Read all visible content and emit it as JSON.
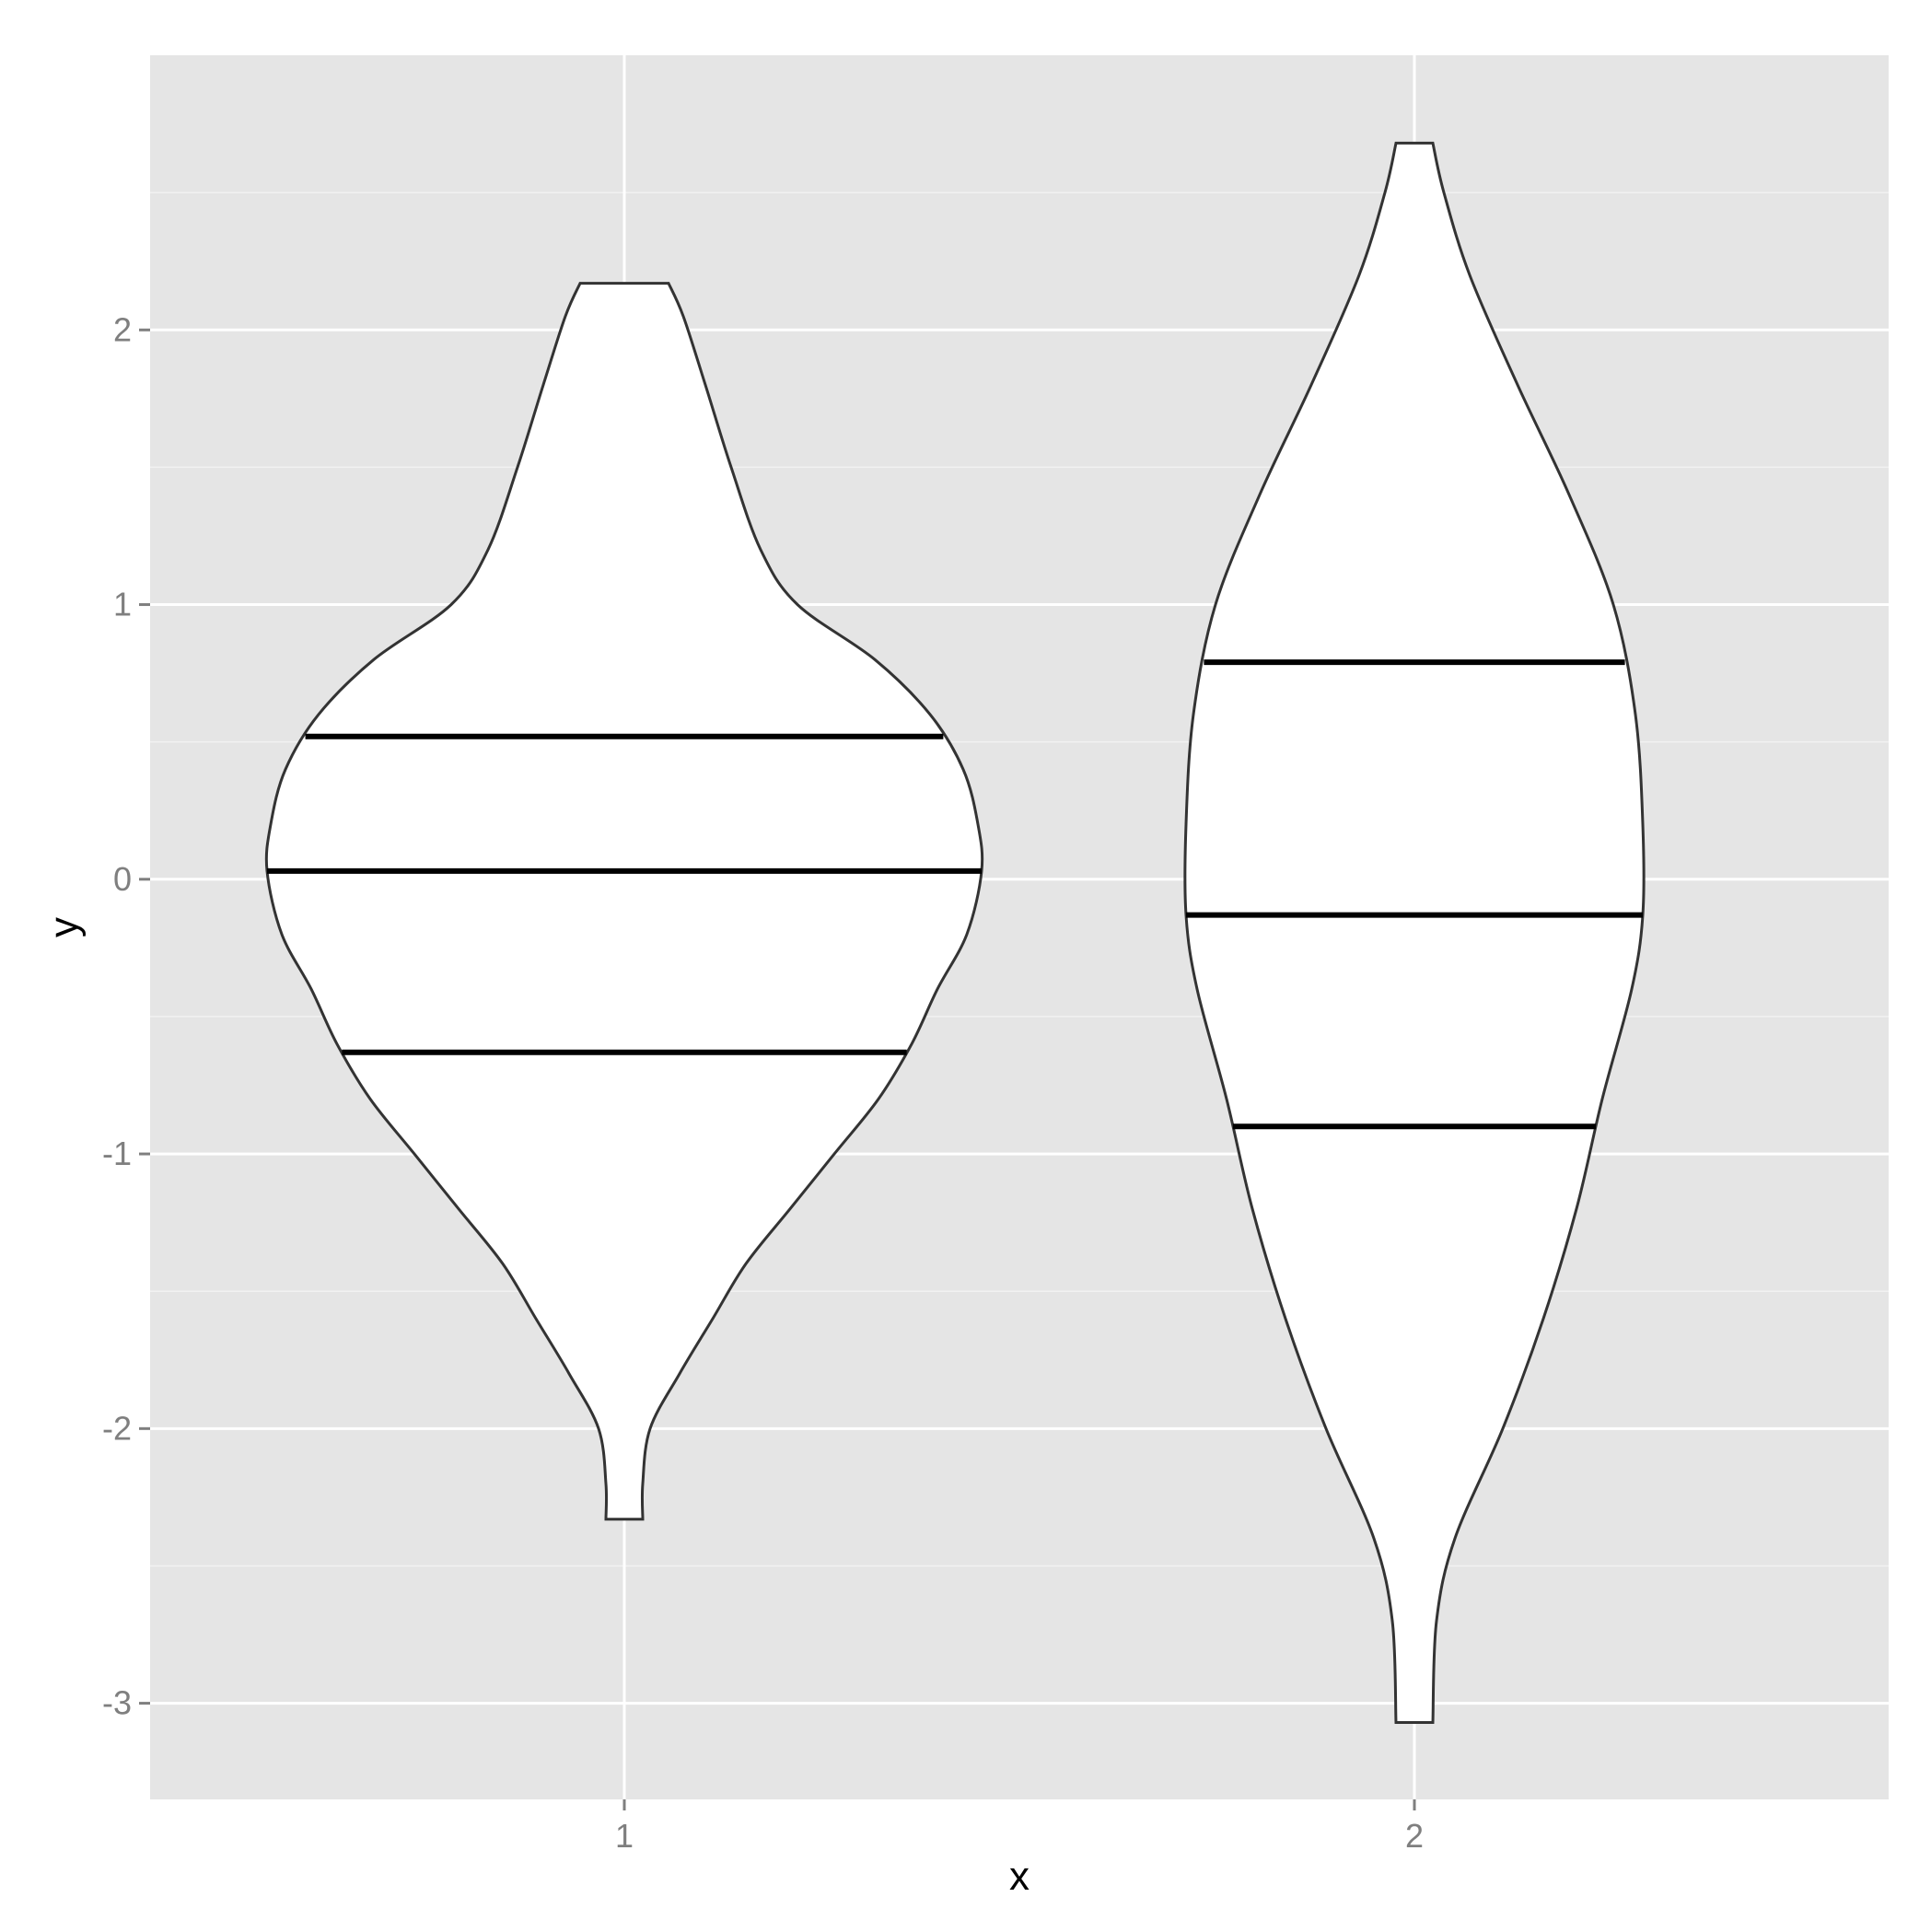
{
  "chart_data": {
    "type": "violin",
    "title": "",
    "xlabel": "x",
    "ylabel": "y",
    "categories": [
      "1",
      "2"
    ],
    "ylim": [
      -3.35,
      3.0
    ],
    "y_ticks": [
      -3,
      -2,
      -1,
      0,
      1,
      2
    ],
    "y_tick_labels": [
      "-3",
      "-2",
      "-1",
      "0",
      "1",
      "2"
    ],
    "x_tick_labels": [
      "1",
      "2"
    ],
    "grid": true,
    "panel_background": "#e5e5e5",
    "violin_fill": "#ffffff",
    "outline_color": "#333333",
    "quantile_color": "#000000",
    "violins": [
      {
        "category": "1",
        "min": -2.33,
        "max": 2.17,
        "quantiles": [
          -0.63,
          0.03,
          0.52
        ],
        "density_profile": [
          [
            2.17,
            0.12
          ],
          [
            2.05,
            0.16
          ],
          [
            1.8,
            0.22
          ],
          [
            1.5,
            0.29
          ],
          [
            1.2,
            0.37
          ],
          [
            1.0,
            0.47
          ],
          [
            0.8,
            0.68
          ],
          [
            0.6,
            0.83
          ],
          [
            0.4,
            0.92
          ],
          [
            0.2,
            0.96
          ],
          [
            0.03,
            0.97
          ],
          [
            -0.2,
            0.93
          ],
          [
            -0.4,
            0.85
          ],
          [
            -0.6,
            0.78
          ],
          [
            -0.8,
            0.69
          ],
          [
            -1.0,
            0.57
          ],
          [
            -1.2,
            0.45
          ],
          [
            -1.4,
            0.33
          ],
          [
            -1.6,
            0.24
          ],
          [
            -1.8,
            0.15
          ],
          [
            -2.0,
            0.07
          ],
          [
            -2.2,
            0.05
          ],
          [
            -2.33,
            0.05
          ]
        ]
      },
      {
        "category": "2",
        "min": -3.07,
        "max": 2.68,
        "quantiles": [
          -0.9,
          -0.13,
          0.79
        ],
        "density_profile": [
          [
            2.68,
            0.05
          ],
          [
            2.5,
            0.08
          ],
          [
            2.2,
            0.15
          ],
          [
            1.8,
            0.28
          ],
          [
            1.4,
            0.42
          ],
          [
            1.0,
            0.54
          ],
          [
            0.6,
            0.6
          ],
          [
            0.2,
            0.62
          ],
          [
            -0.13,
            0.62
          ],
          [
            -0.4,
            0.59
          ],
          [
            -0.8,
            0.51
          ],
          [
            -1.2,
            0.44
          ],
          [
            -1.6,
            0.35
          ],
          [
            -2.0,
            0.24
          ],
          [
            -2.4,
            0.11
          ],
          [
            -2.7,
            0.06
          ],
          [
            -3.07,
            0.05
          ]
        ]
      }
    ]
  }
}
